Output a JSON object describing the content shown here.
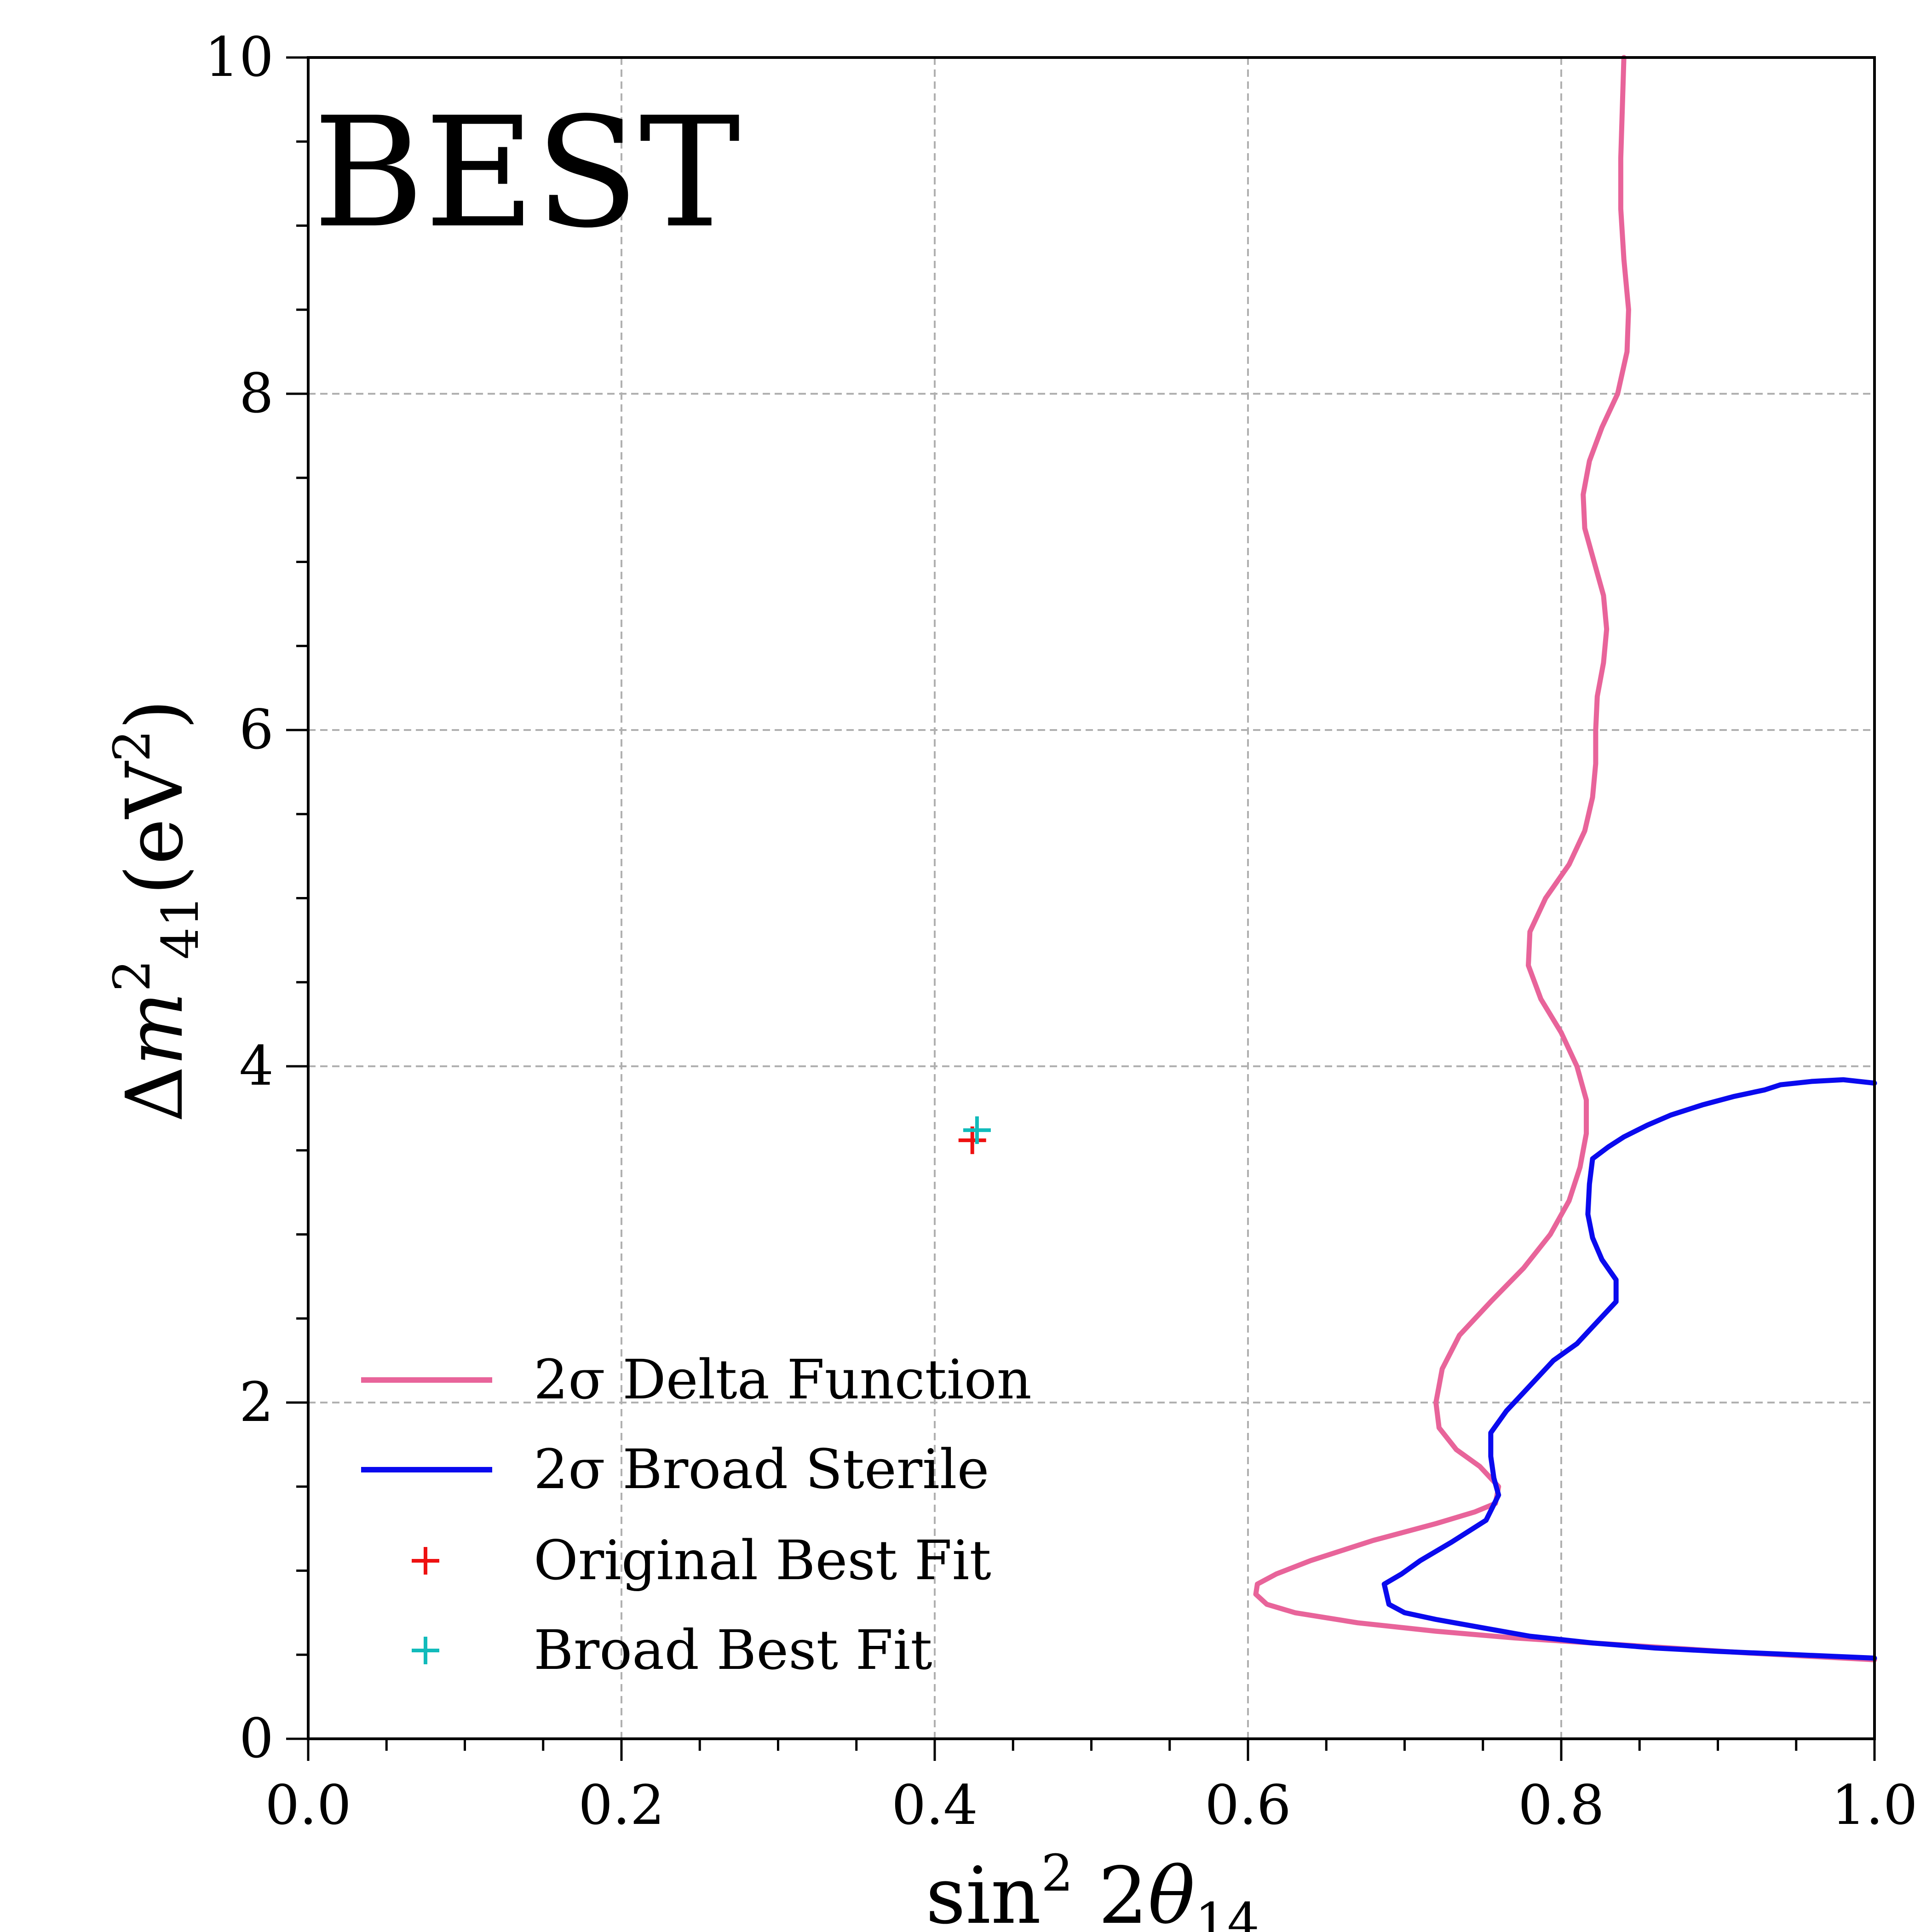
{
  "chart_data": {
    "type": "line",
    "title": "BEST",
    "xlabel": "sin² 2θ₁₄",
    "ylabel": "Δm²₄₁ (eV²)",
    "xlim": [
      0.0,
      1.0
    ],
    "ylim": [
      0,
      10
    ],
    "x_ticks": [
      0.0,
      0.2,
      0.4,
      0.6,
      0.8,
      1.0
    ],
    "x_tick_labels": [
      "0.0",
      "0.2",
      "0.4",
      "0.6",
      "0.8",
      "1.0"
    ],
    "y_ticks": [
      0,
      2,
      4,
      6,
      8,
      10
    ],
    "y_tick_labels": [
      "0",
      "2",
      "4",
      "6",
      "8",
      "10"
    ],
    "grid": true,
    "legend_position": "lower-left",
    "series": [
      {
        "name": "2σ Delta Function",
        "color": "#e8649a",
        "x": [
          0.84,
          0.839,
          0.838,
          0.838,
          0.84,
          0.843,
          0.842,
          0.836,
          0.826,
          0.818,
          0.814,
          0.815,
          0.821,
          0.827,
          0.829,
          0.827,
          0.823,
          0.822,
          0.822,
          0.82,
          0.815,
          0.805,
          0.79,
          0.78,
          0.779,
          0.787,
          0.8,
          0.81,
          0.816,
          0.816,
          0.812,
          0.805,
          0.793,
          0.776,
          0.755,
          0.735,
          0.724,
          0.72,
          0.722,
          0.733,
          0.748,
          0.76,
          0.758,
          0.745,
          0.72,
          0.68,
          0.64,
          0.618,
          0.606,
          0.605,
          0.612,
          0.63,
          0.67,
          0.72,
          0.77,
          0.82,
          0.87,
          0.92,
          0.96,
          1.0
        ],
        "y": [
          10.0,
          9.7,
          9.4,
          9.1,
          8.8,
          8.5,
          8.25,
          8.0,
          7.8,
          7.6,
          7.4,
          7.2,
          7.0,
          6.8,
          6.6,
          6.4,
          6.2,
          6.0,
          5.8,
          5.6,
          5.4,
          5.2,
          5.0,
          4.8,
          4.6,
          4.4,
          4.2,
          4.0,
          3.8,
          3.6,
          3.4,
          3.2,
          3.0,
          2.8,
          2.6,
          2.4,
          2.2,
          2.0,
          1.85,
          1.72,
          1.62,
          1.5,
          1.4,
          1.35,
          1.28,
          1.18,
          1.06,
          0.98,
          0.92,
          0.86,
          0.8,
          0.75,
          0.69,
          0.64,
          0.6,
          0.57,
          0.54,
          0.51,
          0.49,
          0.47
        ]
      },
      {
        "name": "2σ Broad Sterile",
        "color": "#0a0aee",
        "x": [
          1.0,
          0.98,
          0.96,
          0.94,
          0.93,
          0.91,
          0.89,
          0.87,
          0.855,
          0.84,
          0.83,
          0.82,
          0.818,
          0.817,
          0.82,
          0.826,
          0.835,
          0.835,
          0.82,
          0.81,
          0.795,
          0.775,
          0.765,
          0.755,
          0.755,
          0.757,
          0.76,
          0.752,
          0.73,
          0.71,
          0.698,
          0.687,
          0.69,
          0.7,
          0.72,
          0.75,
          0.78,
          0.82,
          0.86,
          0.9,
          0.95,
          1.0
        ],
        "y": [
          3.9,
          3.92,
          3.91,
          3.89,
          3.86,
          3.82,
          3.77,
          3.71,
          3.65,
          3.58,
          3.52,
          3.45,
          3.3,
          3.12,
          2.98,
          2.85,
          2.73,
          2.6,
          2.45,
          2.35,
          2.25,
          2.05,
          1.95,
          1.82,
          1.68,
          1.55,
          1.45,
          1.3,
          1.17,
          1.06,
          0.98,
          0.92,
          0.8,
          0.75,
          0.71,
          0.66,
          0.61,
          0.57,
          0.54,
          0.52,
          0.5,
          0.48
        ]
      }
    ],
    "points": [
      {
        "name": "Original Best Fit",
        "color": "#ee1111",
        "x": 0.424,
        "y": 3.56,
        "marker": "+"
      },
      {
        "name": "Broad Best Fit",
        "color": "#11bbbb",
        "x": 0.427,
        "y": 3.62,
        "marker": "+"
      }
    ]
  }
}
